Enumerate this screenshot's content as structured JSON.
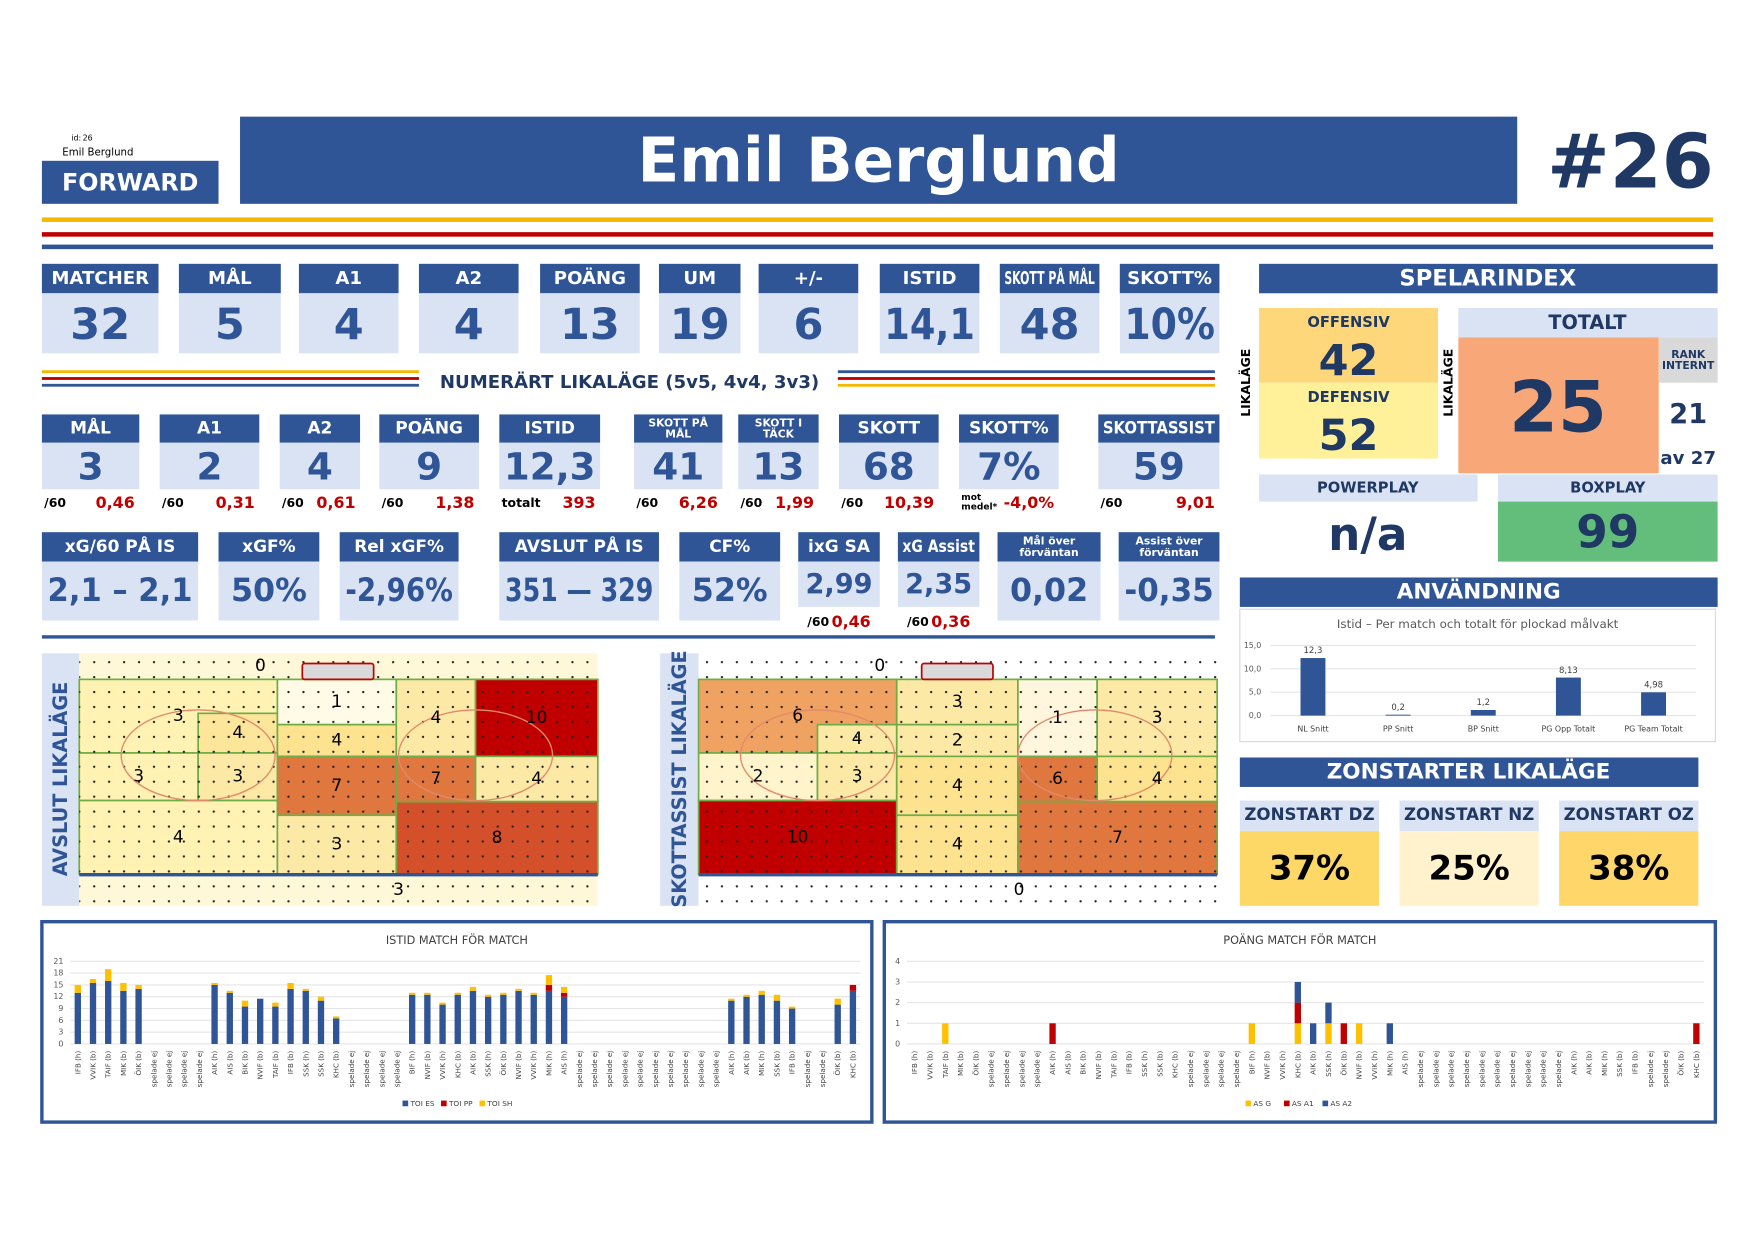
{
  "header": {
    "id_label": "id:",
    "id": "26",
    "name_small": "Emil Berglund",
    "position": "FORWARD",
    "name": "Emil Berglund",
    "number": "#26"
  },
  "stats": [
    {
      "label": "MATCHER",
      "value": "32"
    },
    {
      "label": "MÅL",
      "value": "5"
    },
    {
      "label": "A1",
      "value": "4"
    },
    {
      "label": "A2",
      "value": "4"
    },
    {
      "label": "POÄNG",
      "value": "13"
    },
    {
      "label": "UM",
      "value": "19"
    },
    {
      "label": "+/-",
      "value": "6"
    },
    {
      "label": "ISTID",
      "value": "14,1"
    },
    {
      "label": "SKOTT PÅ MÅL",
      "value": "48"
    },
    {
      "label": "SKOTT%",
      "value": "10%"
    }
  ],
  "even_strength": {
    "title": "NUMERÄRT LIKALÄGE (5v5, 4v4, 3v3)",
    "stats": [
      {
        "label": "MÅL",
        "value": "3",
        "sub_label": "/60",
        "sub_value": "0,46"
      },
      {
        "label": "A1",
        "value": "2",
        "sub_label": "/60",
        "sub_value": "0,31"
      },
      {
        "label": "A2",
        "value": "4",
        "sub_label": "/60",
        "sub_value": "0,61"
      },
      {
        "label": "POÄNG",
        "value": "9",
        "sub_label": "/60",
        "sub_value": "1,38"
      },
      {
        "label": "ISTID",
        "value": "12,3",
        "sub_label": "totalt",
        "sub_value": "393"
      },
      {
        "label": [
          "SKOTT PÅ",
          "MÅL"
        ],
        "value": "41",
        "sub_label": "/60",
        "sub_value": "6,26"
      },
      {
        "label": [
          "SKOTT I",
          "TÄCK"
        ],
        "value": "13",
        "sub_label": "/60",
        "sub_value": "1,99"
      },
      {
        "label": "SKOTT",
        "value": "68",
        "sub_label": "/60",
        "sub_value": "10,39"
      },
      {
        "label": "SKOTT%",
        "value": "7%",
        "sub_label": [
          "mot",
          "medel*"
        ],
        "sub_value": "-4,0%"
      },
      {
        "label": "SKOTTASSIST",
        "value": "59",
        "sub_label": "/60",
        "sub_value": "9,01"
      }
    ]
  },
  "advanced": [
    {
      "label": "xG/60 PÅ IS",
      "value": "2,1 – 2,1"
    },
    {
      "label": "xGF%",
      "value": "50%"
    },
    {
      "label": "Rel xGF%",
      "value": "-2,96%"
    },
    {
      "label": "AVSLUT PÅ IS",
      "value": "351 — 329"
    },
    {
      "label": "CF%",
      "value": "52%"
    },
    {
      "label": "ixG SA",
      "value": "2,99",
      "sub_label": "/60",
      "sub_value": "0,46"
    },
    {
      "label": "xG Assist",
      "value": "2,35",
      "sub_label": "/60",
      "sub_value": "0,36"
    },
    {
      "label": [
        "Mål över",
        "förväntan"
      ],
      "value": "0,02"
    },
    {
      "label": [
        "Assist över",
        "förväntan"
      ],
      "value": "-0,35"
    }
  ],
  "player_index": {
    "title": "SPELARINDEX",
    "side_label": "LIKALÄGE",
    "offensive_label": "OFFENSIV",
    "offensive": "42",
    "defensive_label": "DEFENSIV",
    "defensive": "52",
    "total_label": "TOTALT",
    "total": "25",
    "rank_label": [
      "RANK",
      "INTERNT"
    ],
    "rank": "21",
    "rank_of": "av 27",
    "powerplay_label": "POWERPLAY",
    "powerplay": "n/a",
    "boxplay_label": "BOXPLAY",
    "boxplay": "99"
  },
  "usage": {
    "title": "ANVÄNDNING"
  },
  "zone_starts": {
    "title": "ZONSTARTER LIKALÄGE",
    "zones": [
      {
        "label": "ZONSTART DZ",
        "value": "37%",
        "color": "#fdd866"
      },
      {
        "label": "ZONSTART NZ",
        "value": "25%",
        "color": "#fff2cc"
      },
      {
        "label": "ZONSTART OZ",
        "value": "38%",
        "color": "#fed66a"
      }
    ]
  },
  "rinks": [
    {
      "title": "AVSLUT LIKALÄGE",
      "top_value": 0,
      "bottom_value": 3,
      "zones": [
        {
          "value": 3,
          "color": "#fff2b3"
        },
        {
          "value": 4,
          "color": "#fde59a"
        },
        {
          "value": 3,
          "color": "#fff2b3"
        },
        {
          "value": 3,
          "color": "#fde9a6"
        },
        {
          "value": 4,
          "color": "#fff2b3"
        },
        {
          "value": 1,
          "color": "#fffbe6"
        },
        {
          "value": 4,
          "color": "#fde38f"
        },
        {
          "value": 7,
          "color": "#e0773f"
        },
        {
          "value": 3,
          "color": "#fde9a6"
        },
        {
          "value": 4,
          "color": "#fde9a6"
        },
        {
          "value": 10,
          "color": "#c00000"
        },
        {
          "value": 7,
          "color": "#e0773f"
        },
        {
          "value": 4,
          "color": "#fde9a6"
        },
        {
          "value": 8,
          "color": "#d4502a"
        }
      ]
    },
    {
      "title": "SKOTTASSIST LIKALÄGE",
      "top_value": 0,
      "bottom_value": 0,
      "zones": [
        {
          "value": 6,
          "color": "#f0a262"
        },
        {
          "value": 4,
          "color": "#fde9a6"
        },
        {
          "value": 2,
          "color": "#fff4cc"
        },
        {
          "value": 3,
          "color": "#fde9a6"
        },
        {
          "value": 10,
          "color": "#c00000"
        },
        {
          "value": 3,
          "color": "#fde9a6"
        },
        {
          "value": 2,
          "color": "#fde9a6"
        },
        {
          "value": 4,
          "color": "#fde38f"
        },
        {
          "value": 4,
          "color": "#fde38f"
        },
        {
          "value": 1,
          "color": "#fff6dd"
        },
        {
          "value": 3,
          "color": "#fde9a6"
        },
        {
          "value": 6,
          "color": "#e0773f"
        },
        {
          "value": 4,
          "color": "#fde38f"
        },
        {
          "value": 7,
          "color": "#e0773f"
        }
      ]
    }
  ],
  "chart_data": [
    {
      "type": "bar",
      "title": "Istid – Per match och totalt för plockad målvakt",
      "categories": [
        "NL Snitt",
        "PP Snitt",
        "BP Snitt",
        "PG Opp Totalt",
        "PG Team Totalt"
      ],
      "values": [
        12.3,
        0.2,
        1.2,
        8.13,
        4.98
      ],
      "value_labels": [
        "12,3",
        "0,2",
        "1,2",
        "8,13",
        "4,98"
      ],
      "color": "#2f5597",
      "ylim": [
        0,
        15
      ],
      "yticks": [
        {
          "value": 0,
          "label": "0,0"
        },
        {
          "value": 5,
          "label": "5,0"
        },
        {
          "value": 10,
          "label": "10,0"
        },
        {
          "value": 15,
          "label": "15,0"
        }
      ],
      "grid": true
    },
    {
      "type": "stacked_bar",
      "title": "ISTID MATCH FÖR MATCH",
      "categories": [
        "IFB (h)",
        "VVIK (b)",
        "TAIF (b)",
        "MIK (b)",
        "ÖIK (b)",
        "spelade ej",
        "spelade ej",
        "spelade ej",
        "spelade ej",
        "AIK (h)",
        "AIS (b)",
        "BIK (b)",
        "NVIF (b)",
        "TAIF (b)",
        "IFB (b)",
        "SSK (h)",
        "SSK (b)",
        "KHC (b)",
        "spelade ej",
        "spelade ej",
        "spelade ej",
        "spelade ej",
        "BIF (h)",
        "NVIF (b)",
        "VVIK (h)",
        "KHC (b)",
        "AIK (b)",
        "SSK (h)",
        "ÖIK (b)",
        "NVIF (b)",
        "VVIK (h)",
        "MIK (h)",
        "AIS (h)",
        "spelade ej",
        "spelade ej",
        "spelade ej",
        "spelade ej",
        "spelade ej",
        "spelade ej",
        "spelade ej",
        "spelade ej",
        "spelade ej",
        "spelade ej",
        "AIK (h)",
        "AIK (b)",
        "MIK (h)",
        "SSK (b)",
        "IFB (b)",
        "spelade ej",
        "spelade ej",
        "ÖIK (b)",
        "KHC (b)"
      ],
      "series": [
        {
          "name": "TOI ES",
          "color": "#2f5597",
          "values": [
            13,
            15.5,
            16,
            13.5,
            14,
            0,
            0,
            0,
            0,
            15,
            13,
            9.5,
            11.5,
            9.5,
            14,
            13.5,
            11,
            6.5,
            0,
            0,
            0,
            0,
            12.5,
            12.5,
            10,
            12.5,
            13.5,
            12,
            12.5,
            13.5,
            12.5,
            13.5,
            12,
            0,
            0,
            0,
            0,
            0,
            0,
            0,
            0,
            0,
            0,
            11,
            12,
            12.5,
            11,
            9,
            0,
            0,
            10,
            13.5
          ]
        },
        {
          "name": "TOI PP",
          "color": "#c00000",
          "values": [
            0,
            0,
            0,
            0,
            0,
            0,
            0,
            0,
            0,
            0,
            0,
            0,
            0,
            0,
            0,
            0,
            0,
            0,
            0,
            0,
            0,
            0,
            0,
            0,
            0,
            0,
            0,
            0,
            0,
            0,
            0,
            1.5,
            1,
            0,
            0,
            0,
            0,
            0,
            0,
            0,
            0,
            0,
            0,
            0,
            0,
            0,
            0,
            0,
            0,
            0,
            0,
            1.5
          ]
        },
        {
          "name": "TOI SH",
          "color": "#ffc000",
          "values": [
            2,
            1,
            3,
            2,
            1,
            0,
            0,
            0,
            0,
            0.5,
            0.5,
            1.5,
            0,
            1,
            1.5,
            0.5,
            1,
            0.5,
            0,
            0,
            0,
            0,
            0.5,
            0.5,
            0.5,
            0.5,
            1,
            0.5,
            0.5,
            0.5,
            0.5,
            2.5,
            1.5,
            0,
            0,
            0,
            0,
            0,
            0,
            0,
            0,
            0,
            0,
            0.5,
            0.5,
            1,
            1.5,
            0.5,
            0,
            0,
            1.5,
            0
          ]
        }
      ],
      "ylim": [
        0,
        21
      ],
      "yticks": [
        0,
        3,
        6,
        9,
        12,
        15,
        18,
        21
      ],
      "grid": true
    },
    {
      "type": "stacked_bar",
      "title": "POÄNG MATCH FÖR MATCH",
      "categories": [
        "IFB (h)",
        "VVIK (b)",
        "TAIF (b)",
        "MIK (b)",
        "ÖIK (b)",
        "spelade ej",
        "spelade ej",
        "spelade ej",
        "spelade ej",
        "AIK (h)",
        "AIS (b)",
        "BIK (b)",
        "NVIF (b)",
        "TAIF (b)",
        "IFB (b)",
        "SSK (h)",
        "SSK (b)",
        "KHC (b)",
        "spelade ej",
        "spelade ej",
        "spelade ej",
        "spelade ej",
        "BIF (h)",
        "NVIF (b)",
        "VVIK (h)",
        "KHC (b)",
        "AIK (b)",
        "SSK (h)",
        "ÖIK (b)",
        "NVIF (b)",
        "VVIK (h)",
        "MIK (h)",
        "AIS (h)",
        "spelade ej",
        "spelade ej",
        "spelade ej",
        "spelade ej",
        "spelade ej",
        "spelade ej",
        "spelade ej",
        "spelade ej",
        "spelade ej",
        "spelade ej",
        "AIK (h)",
        "AIK (b)",
        "MIK (h)",
        "SSK (b)",
        "IFB (b)",
        "spelade ej",
        "spelade ej",
        "ÖIK (b)",
        "KHC (b)"
      ],
      "series": [
        {
          "name": "AS G",
          "color": "#ffc000",
          "values": [
            0,
            0,
            1,
            0,
            0,
            0,
            0,
            0,
            0,
            0,
            0,
            0,
            0,
            0,
            0,
            0,
            0,
            0,
            0,
            0,
            0,
            0,
            1,
            0,
            0,
            1,
            0,
            1,
            0,
            1,
            0,
            0,
            0,
            0,
            0,
            0,
            0,
            0,
            0,
            0,
            0,
            0,
            0,
            0,
            0,
            0,
            0,
            0,
            0,
            0,
            0,
            0
          ]
        },
        {
          "name": "AS A1",
          "color": "#c00000",
          "values": [
            0,
            0,
            0,
            0,
            0,
            0,
            0,
            0,
            0,
            1,
            0,
            0,
            0,
            0,
            0,
            0,
            0,
            0,
            0,
            0,
            0,
            0,
            0,
            0,
            0,
            1,
            0,
            0,
            1,
            0,
            0,
            0,
            0,
            0,
            0,
            0,
            0,
            0,
            0,
            0,
            0,
            0,
            0,
            0,
            0,
            0,
            0,
            0,
            0,
            0,
            0,
            1
          ]
        },
        {
          "name": "AS A2",
          "color": "#2f5597",
          "values": [
            0,
            0,
            0,
            0,
            0,
            0,
            0,
            0,
            0,
            0,
            0,
            0,
            0,
            0,
            0,
            0,
            0,
            0,
            0,
            0,
            0,
            0,
            0,
            0,
            0,
            1,
            1,
            1,
            0,
            0,
            0,
            1,
            0,
            0,
            0,
            0,
            0,
            0,
            0,
            0,
            0,
            0,
            0,
            0,
            0,
            0,
            0,
            0,
            0,
            0,
            0,
            0
          ]
        }
      ],
      "ylim": [
        0,
        4
      ],
      "yticks": [
        0,
        1,
        2,
        3,
        4
      ],
      "grid": true
    }
  ]
}
